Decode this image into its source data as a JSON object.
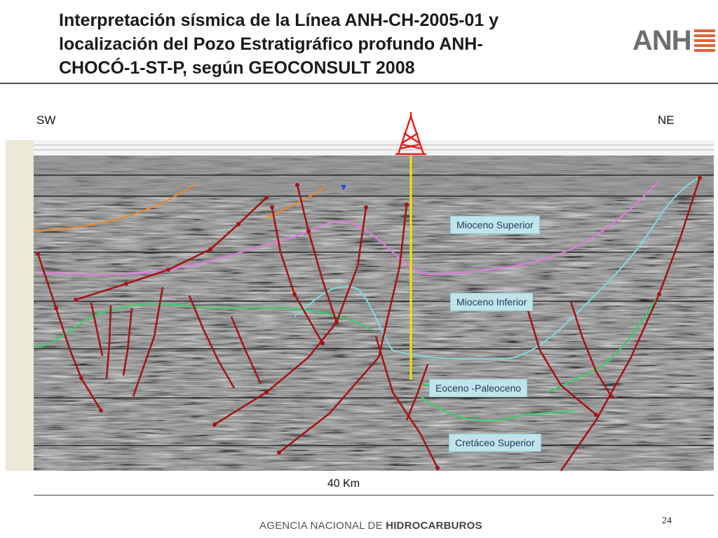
{
  "title": {
    "line1": "Interpretación sísmica de la Línea ANH-CH-2005-01 y",
    "line2": "localización del Pozo Estratigráfico profundo  ANH-",
    "line3": "CHOCÓ-1-ST-P, según GEOCONSULT 2008"
  },
  "logo": {
    "text": "ANH",
    "color": "#e0643a"
  },
  "directions": {
    "left": "SW",
    "right": "NE"
  },
  "horizons": [
    {
      "label": "Mioceno Superior",
      "color": "#e07be0"
    },
    {
      "label": "Mioceno Inferior",
      "color": "#7fd6dc"
    },
    {
      "label": "Eoceno -Paleoceno",
      "color": "#3bcf6a"
    },
    {
      "label": "Cretáceo Superior",
      "color": "#3bcf6a"
    }
  ],
  "well": {
    "icon": "drilling-rig-icon",
    "line_color": "#f2e600",
    "rig_color": "#e21b1b"
  },
  "fault_color": "#a31616",
  "scale": {
    "label": "40 Km"
  },
  "page_number": "24",
  "footer": {
    "prefix": "AGENCIA NACIONAL DE ",
    "bold": "HIDROCARBUROS"
  }
}
